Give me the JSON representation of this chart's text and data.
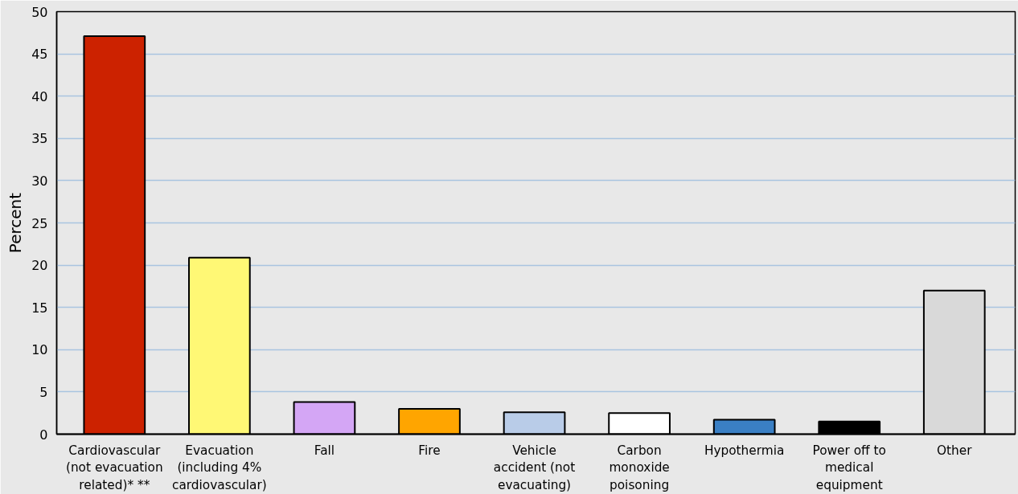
{
  "chart_data": {
    "type": "bar",
    "ylabel": "Percent",
    "categories": [
      "Cardiovascular\n(not evacuation\nrelated)* **",
      "Evacuation\n(including 4%\ncardiovascular)",
      "Fall",
      "Fire",
      "Vehicle\naccident (not\nevacuating)",
      "Carbon\nmonoxide\npoisoning",
      "Hypothermia",
      "Power off to\nmedical\nequipment",
      "Other"
    ],
    "values": [
      47.1,
      20.9,
      3.8,
      3.0,
      2.6,
      2.5,
      1.7,
      1.5,
      17.0
    ],
    "colors": [
      "#cc2200",
      "#fff875",
      "#d4a6f5",
      "#ffa500",
      "#b9cce8",
      "#ffffff",
      "#3a7fc4",
      "#000000",
      "#d9d9d9"
    ],
    "ylim": [
      0,
      50
    ],
    "yticks": [
      0,
      5,
      10,
      15,
      20,
      25,
      30,
      35,
      40,
      45,
      50
    ],
    "grid": "y"
  }
}
